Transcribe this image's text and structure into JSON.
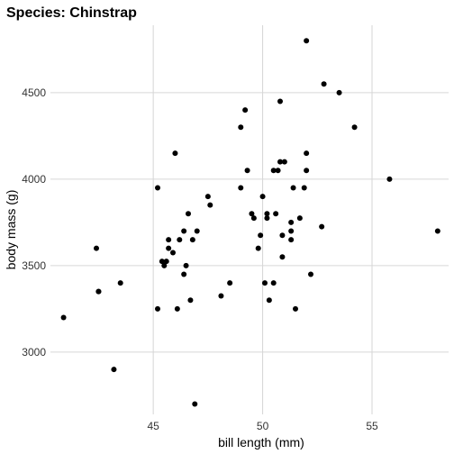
{
  "chart_data": {
    "type": "scatter",
    "title": "Species: Chinstrap",
    "xlabel": "bill length (mm)",
    "ylabel": "body mass (g)",
    "xlim": [
      40.3,
      58.5
    ],
    "ylim": [
      2640,
      4890
    ],
    "x_ticks": [
      45,
      50,
      55
    ],
    "y_ticks": [
      3000,
      3500,
      4000,
      4500
    ],
    "grid": true,
    "legend": "none",
    "point_color": "#000000",
    "points": [
      {
        "x": 52.0,
        "y": 4800
      },
      {
        "x": 52.8,
        "y": 4550
      },
      {
        "x": 53.5,
        "y": 4500
      },
      {
        "x": 50.8,
        "y": 4450
      },
      {
        "x": 49.2,
        "y": 4400
      },
      {
        "x": 49.0,
        "y": 4300
      },
      {
        "x": 54.2,
        "y": 4300
      },
      {
        "x": 46.0,
        "y": 4150
      },
      {
        "x": 52.0,
        "y": 4150
      },
      {
        "x": 50.8,
        "y": 4100
      },
      {
        "x": 51.0,
        "y": 4100
      },
      {
        "x": 49.3,
        "y": 4050
      },
      {
        "x": 50.5,
        "y": 4050
      },
      {
        "x": 50.7,
        "y": 4050
      },
      {
        "x": 52.0,
        "y": 4050
      },
      {
        "x": 55.8,
        "y": 4000
      },
      {
        "x": 45.2,
        "y": 3950
      },
      {
        "x": 49.0,
        "y": 3950
      },
      {
        "x": 51.4,
        "y": 3950
      },
      {
        "x": 51.9,
        "y": 3950
      },
      {
        "x": 47.5,
        "y": 3900
      },
      {
        "x": 50.0,
        "y": 3900
      },
      {
        "x": 47.6,
        "y": 3850
      },
      {
        "x": 46.6,
        "y": 3800
      },
      {
        "x": 49.5,
        "y": 3800
      },
      {
        "x": 50.2,
        "y": 3800
      },
      {
        "x": 50.6,
        "y": 3800
      },
      {
        "x": 49.6,
        "y": 3775
      },
      {
        "x": 50.2,
        "y": 3775
      },
      {
        "x": 51.7,
        "y": 3775
      },
      {
        "x": 51.3,
        "y": 3750
      },
      {
        "x": 52.7,
        "y": 3725
      },
      {
        "x": 46.4,
        "y": 3700
      },
      {
        "x": 47.0,
        "y": 3700
      },
      {
        "x": 51.3,
        "y": 3700
      },
      {
        "x": 58.0,
        "y": 3700
      },
      {
        "x": 49.9,
        "y": 3675
      },
      {
        "x": 50.9,
        "y": 3675
      },
      {
        "x": 45.7,
        "y": 3650
      },
      {
        "x": 46.2,
        "y": 3650
      },
      {
        "x": 46.8,
        "y": 3650
      },
      {
        "x": 51.3,
        "y": 3650
      },
      {
        "x": 45.7,
        "y": 3600
      },
      {
        "x": 49.8,
        "y": 3600
      },
      {
        "x": 42.4,
        "y": 3600
      },
      {
        "x": 45.9,
        "y": 3575
      },
      {
        "x": 50.9,
        "y": 3550
      },
      {
        "x": 45.4,
        "y": 3525
      },
      {
        "x": 45.6,
        "y": 3525
      },
      {
        "x": 45.5,
        "y": 3500
      },
      {
        "x": 46.5,
        "y": 3500
      },
      {
        "x": 46.4,
        "y": 3450
      },
      {
        "x": 52.2,
        "y": 3450
      },
      {
        "x": 43.5,
        "y": 3400
      },
      {
        "x": 48.5,
        "y": 3400
      },
      {
        "x": 50.1,
        "y": 3400
      },
      {
        "x": 50.5,
        "y": 3400
      },
      {
        "x": 42.5,
        "y": 3350
      },
      {
        "x": 42.5,
        "y": 3350
      },
      {
        "x": 48.1,
        "y": 3325
      },
      {
        "x": 46.7,
        "y": 3300
      },
      {
        "x": 50.3,
        "y": 3300
      },
      {
        "x": 45.2,
        "y": 3250
      },
      {
        "x": 46.1,
        "y": 3250
      },
      {
        "x": 51.5,
        "y": 3250
      },
      {
        "x": 40.9,
        "y": 3200
      },
      {
        "x": 43.2,
        "y": 2900
      },
      {
        "x": 46.9,
        "y": 2700
      }
    ]
  }
}
